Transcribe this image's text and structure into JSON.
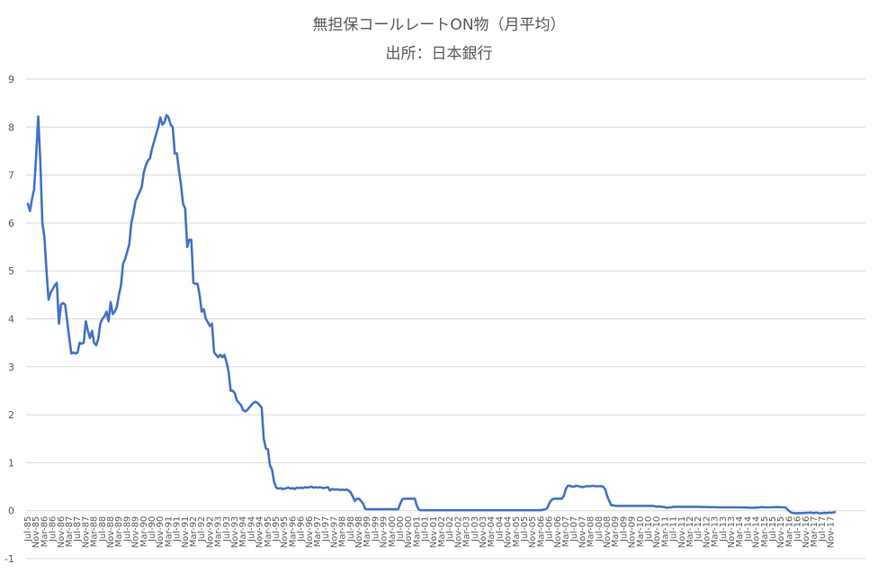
{
  "chart_data": {
    "type": "line",
    "title": "無担保コールレートON物（月平均）",
    "subtitle": "出所：日本銀行",
    "series_color": "#4472c4",
    "grid": true,
    "ylim": [
      -1,
      9
    ],
    "yticks": [
      -1,
      0,
      1,
      2,
      3,
      4,
      5,
      6,
      7,
      8,
      9
    ],
    "x_start": "1985-07",
    "x_tick_step_months": 4,
    "x_tick_labels": [
      "Jul-85",
      "Nov-85",
      "Mar-86",
      "Jul-86",
      "Nov-86",
      "Mar-87",
      "Jul-87",
      "Nov-87",
      "Mar-88",
      "Jul-88",
      "Nov-88",
      "Mar-89",
      "Jul-89",
      "Nov-89",
      "Mar-90",
      "Jul-90",
      "Nov-90",
      "Mar-91",
      "Jul-91",
      "Nov-91",
      "Mar-92",
      "Jul-92",
      "Nov-92",
      "Mar-93",
      "Jul-93",
      "Nov-93",
      "Mar-94",
      "Jul-94",
      "Nov-94",
      "Mar-95",
      "Jul-95",
      "Nov-95",
      "Mar-96",
      "Jul-96",
      "Nov-96",
      "Mar-97",
      "Jul-97",
      "Nov-97",
      "Mar-98",
      "Jul-98",
      "Nov-98",
      "Mar-99",
      "Jul-99",
      "Nov-99",
      "Mar-00",
      "Jul-00",
      "Nov-00",
      "Mar-01",
      "Jul-01",
      "Nov-01",
      "Mar-02",
      "Jul-02",
      "Nov-02",
      "Mar-03",
      "Jul-03",
      "Nov-03",
      "Mar-04",
      "Jul-04",
      "Nov-04",
      "Mar-05",
      "Jul-05",
      "Nov-05",
      "Mar-06",
      "Jul-06",
      "Nov-06",
      "Mar-07",
      "Jul-07",
      "Nov-07",
      "Mar-08",
      "Jul-08",
      "Nov-08",
      "Mar-09",
      "Jul-09",
      "Nov-09",
      "Mar-10",
      "Jul-10",
      "Nov-10",
      "Mar-11",
      "Jul-11",
      "Nov-11",
      "Mar-12",
      "Jul-12",
      "Nov-12",
      "Mar-13",
      "Jul-13",
      "Nov-13",
      "Mar-14",
      "Jul-14",
      "Nov-14",
      "Mar-15",
      "Jul-15",
      "Nov-15",
      "Mar-16",
      "Jul-16",
      "Nov-16",
      "Mar-17",
      "Jul-17",
      "Nov-17"
    ],
    "points": [
      [
        "1985-07",
        6.4
      ],
      [
        "1985-08",
        6.25
      ],
      [
        "1985-09",
        6.5
      ],
      [
        "1985-10",
        6.7
      ],
      [
        "1985-11",
        7.4
      ],
      [
        "1985-12",
        8.22
      ],
      [
        "1986-01",
        7.3
      ],
      [
        "1986-02",
        6.0
      ],
      [
        "1986-03",
        5.7
      ],
      [
        "1986-04",
        5.0
      ],
      [
        "1986-05",
        4.4
      ],
      [
        "1986-06",
        4.55
      ],
      [
        "1986-07",
        4.62
      ],
      [
        "1986-08",
        4.7
      ],
      [
        "1986-09",
        4.75
      ],
      [
        "1986-10",
        3.9
      ],
      [
        "1986-11",
        4.3
      ],
      [
        "1986-12",
        4.33
      ],
      [
        "1987-01",
        4.3
      ],
      [
        "1987-02",
        3.95
      ],
      [
        "1987-03",
        3.6
      ],
      [
        "1987-04",
        3.28
      ],
      [
        "1987-05",
        3.3
      ],
      [
        "1987-06",
        3.28
      ],
      [
        "1987-07",
        3.3
      ],
      [
        "1987-08",
        3.5
      ],
      [
        "1987-09",
        3.48
      ],
      [
        "1987-10",
        3.5
      ],
      [
        "1987-11",
        3.95
      ],
      [
        "1987-12",
        3.75
      ],
      [
        "1988-01",
        3.6
      ],
      [
        "1988-02",
        3.75
      ],
      [
        "1988-03",
        3.5
      ],
      [
        "1988-04",
        3.45
      ],
      [
        "1988-05",
        3.58
      ],
      [
        "1988-06",
        3.9
      ],
      [
        "1988-07",
        4.0
      ],
      [
        "1988-08",
        4.05
      ],
      [
        "1988-09",
        4.15
      ],
      [
        "1988-10",
        3.95
      ],
      [
        "1988-11",
        4.35
      ],
      [
        "1988-12",
        4.1
      ],
      [
        "1989-01",
        4.15
      ],
      [
        "1989-02",
        4.25
      ],
      [
        "1989-03",
        4.5
      ],
      [
        "1989-04",
        4.7
      ],
      [
        "1989-05",
        5.15
      ],
      [
        "1989-06",
        5.25
      ],
      [
        "1989-07",
        5.4
      ],
      [
        "1989-08",
        5.55
      ],
      [
        "1989-09",
        6.0
      ],
      [
        "1989-10",
        6.2
      ],
      [
        "1989-11",
        6.45
      ],
      [
        "1989-12",
        6.55
      ],
      [
        "1990-01",
        6.65
      ],
      [
        "1990-02",
        6.75
      ],
      [
        "1990-03",
        7.05
      ],
      [
        "1990-04",
        7.2
      ],
      [
        "1990-05",
        7.3
      ],
      [
        "1990-06",
        7.35
      ],
      [
        "1990-07",
        7.55
      ],
      [
        "1990-08",
        7.7
      ],
      [
        "1990-09",
        7.85
      ],
      [
        "1990-10",
        8.0
      ],
      [
        "1990-11",
        8.2
      ],
      [
        "1990-12",
        8.05
      ],
      [
        "1991-01",
        8.1
      ],
      [
        "1991-02",
        8.25
      ],
      [
        "1991-03",
        8.2
      ],
      [
        "1991-04",
        8.05
      ],
      [
        "1991-05",
        8.0
      ],
      [
        "1991-06",
        7.45
      ],
      [
        "1991-07",
        7.45
      ],
      [
        "1991-08",
        7.1
      ],
      [
        "1991-09",
        6.8
      ],
      [
        "1991-10",
        6.4
      ],
      [
        "1991-11",
        6.3
      ],
      [
        "1991-12",
        5.5
      ],
      [
        "1992-01",
        5.65
      ],
      [
        "1992-02",
        5.65
      ],
      [
        "1992-03",
        4.75
      ],
      [
        "1992-04",
        4.73
      ],
      [
        "1992-05",
        4.73
      ],
      [
        "1992-06",
        4.5
      ],
      [
        "1992-07",
        4.15
      ],
      [
        "1992-08",
        4.2
      ],
      [
        "1992-09",
        4.0
      ],
      [
        "1992-10",
        3.93
      ],
      [
        "1992-11",
        3.85
      ],
      [
        "1992-12",
        3.9
      ],
      [
        "1993-01",
        3.3
      ],
      [
        "1993-02",
        3.25
      ],
      [
        "1993-03",
        3.2
      ],
      [
        "1993-04",
        3.25
      ],
      [
        "1993-05",
        3.2
      ],
      [
        "1993-06",
        3.25
      ],
      [
        "1993-07",
        3.1
      ],
      [
        "1993-08",
        2.9
      ],
      [
        "1993-09",
        2.5
      ],
      [
        "1993-10",
        2.5
      ],
      [
        "1993-11",
        2.45
      ],
      [
        "1993-12",
        2.3
      ],
      [
        "1994-01",
        2.25
      ],
      [
        "1994-02",
        2.2
      ],
      [
        "1994-03",
        2.1
      ],
      [
        "1994-04",
        2.07
      ],
      [
        "1994-05",
        2.1
      ],
      [
        "1994-06",
        2.15
      ],
      [
        "1994-07",
        2.2
      ],
      [
        "1994-08",
        2.25
      ],
      [
        "1994-09",
        2.27
      ],
      [
        "1994-10",
        2.25
      ],
      [
        "1994-11",
        2.2
      ],
      [
        "1994-12",
        2.15
      ],
      [
        "1995-01",
        1.5
      ],
      [
        "1995-02",
        1.3
      ],
      [
        "1995-03",
        1.28
      ],
      [
        "1995-04",
        0.95
      ],
      [
        "1995-05",
        0.85
      ],
      [
        "1995-06",
        0.6
      ],
      [
        "1995-07",
        0.48
      ],
      [
        "1995-08",
        0.46
      ],
      [
        "1995-09",
        0.47
      ],
      [
        "1995-10",
        0.45
      ],
      [
        "1995-11",
        0.46
      ],
      [
        "1995-12",
        0.47
      ],
      [
        "1996-01",
        0.48
      ],
      [
        "1996-02",
        0.46
      ],
      [
        "1996-03",
        0.47
      ],
      [
        "1996-04",
        0.45
      ],
      [
        "1996-05",
        0.48
      ],
      [
        "1996-06",
        0.47
      ],
      [
        "1996-07",
        0.48
      ],
      [
        "1996-08",
        0.47
      ],
      [
        "1996-09",
        0.49
      ],
      [
        "1996-10",
        0.48
      ],
      [
        "1996-11",
        0.49
      ],
      [
        "1996-12",
        0.5
      ],
      [
        "1997-01",
        0.48
      ],
      [
        "1997-02",
        0.49
      ],
      [
        "1997-03",
        0.48
      ],
      [
        "1997-04",
        0.49
      ],
      [
        "1997-05",
        0.48
      ],
      [
        "1997-06",
        0.47
      ],
      [
        "1997-07",
        0.48
      ],
      [
        "1997-08",
        0.49
      ],
      [
        "1997-09",
        0.42
      ],
      [
        "1997-10",
        0.45
      ],
      [
        "1997-11",
        0.44
      ],
      [
        "1997-12",
        0.44
      ],
      [
        "1998-01",
        0.44
      ],
      [
        "1998-02",
        0.43
      ],
      [
        "1998-03",
        0.44
      ],
      [
        "1998-04",
        0.43
      ],
      [
        "1998-05",
        0.44
      ],
      [
        "1998-06",
        0.42
      ],
      [
        "1998-07",
        0.38
      ],
      [
        "1998-08",
        0.3
      ],
      [
        "1998-09",
        0.2
      ],
      [
        "1998-10",
        0.25
      ],
      [
        "1998-11",
        0.25
      ],
      [
        "1998-12",
        0.2
      ],
      [
        "1999-01",
        0.15
      ],
      [
        "1999-02",
        0.04
      ],
      [
        "1999-03",
        0.03
      ],
      [
        "1999-04",
        0.03
      ],
      [
        "1999-05",
        0.03
      ],
      [
        "1999-06",
        0.03
      ],
      [
        "1999-07",
        0.03
      ],
      [
        "1999-08",
        0.03
      ],
      [
        "1999-09",
        0.03
      ],
      [
        "1999-10",
        0.03
      ],
      [
        "1999-11",
        0.03
      ],
      [
        "1999-12",
        0.03
      ],
      [
        "2000-01",
        0.03
      ],
      [
        "2000-02",
        0.03
      ],
      [
        "2000-03",
        0.03
      ],
      [
        "2000-04",
        0.03
      ],
      [
        "2000-05",
        0.03
      ],
      [
        "2000-06",
        0.03
      ],
      [
        "2000-07",
        0.15
      ],
      [
        "2000-08",
        0.24
      ],
      [
        "2000-09",
        0.25
      ],
      [
        "2000-10",
        0.25
      ],
      [
        "2000-11",
        0.25
      ],
      [
        "2000-12",
        0.25
      ],
      [
        "2001-01",
        0.25
      ],
      [
        "2001-02",
        0.25
      ],
      [
        "2001-03",
        0.1
      ],
      [
        "2001-04",
        0.02
      ],
      [
        "2001-05",
        0.01
      ],
      [
        "2001-06",
        0.01
      ],
      [
        "2001-07",
        0.01
      ],
      [
        "2001-08",
        0.01
      ],
      [
        "2001-09",
        0.01
      ],
      [
        "2001-10",
        0.01
      ],
      [
        "2001-11",
        0.01
      ],
      [
        "2001-12",
        0.01
      ],
      [
        "2002-06",
        0.01
      ],
      [
        "2003-06",
        0.01
      ],
      [
        "2004-06",
        0.01
      ],
      [
        "2005-06",
        0.01
      ],
      [
        "2006-01",
        0.01
      ],
      [
        "2006-02",
        0.01
      ],
      [
        "2006-03",
        0.01
      ],
      [
        "2006-04",
        0.02
      ],
      [
        "2006-05",
        0.03
      ],
      [
        "2006-06",
        0.05
      ],
      [
        "2006-07",
        0.15
      ],
      [
        "2006-08",
        0.22
      ],
      [
        "2006-09",
        0.25
      ],
      [
        "2006-10",
        0.25
      ],
      [
        "2006-11",
        0.25
      ],
      [
        "2006-12",
        0.25
      ],
      [
        "2007-01",
        0.25
      ],
      [
        "2007-02",
        0.3
      ],
      [
        "2007-03",
        0.45
      ],
      [
        "2007-04",
        0.52
      ],
      [
        "2007-05",
        0.52
      ],
      [
        "2007-06",
        0.5
      ],
      [
        "2007-07",
        0.5
      ],
      [
        "2007-08",
        0.52
      ],
      [
        "2007-09",
        0.51
      ],
      [
        "2007-10",
        0.5
      ],
      [
        "2007-11",
        0.49
      ],
      [
        "2007-12",
        0.5
      ],
      [
        "2008-01",
        0.51
      ],
      [
        "2008-02",
        0.51
      ],
      [
        "2008-03",
        0.51
      ],
      [
        "2008-04",
        0.52
      ],
      [
        "2008-05",
        0.51
      ],
      [
        "2008-06",
        0.51
      ],
      [
        "2008-07",
        0.51
      ],
      [
        "2008-08",
        0.51
      ],
      [
        "2008-09",
        0.5
      ],
      [
        "2008-10",
        0.45
      ],
      [
        "2008-11",
        0.3
      ],
      [
        "2008-12",
        0.2
      ],
      [
        "2009-01",
        0.11
      ],
      [
        "2009-02",
        0.11
      ],
      [
        "2009-03",
        0.1
      ],
      [
        "2009-04",
        0.1
      ],
      [
        "2009-06",
        0.1
      ],
      [
        "2010-03",
        0.1
      ],
      [
        "2010-06",
        0.1
      ],
      [
        "2010-09",
        0.1
      ],
      [
        "2010-10",
        0.09
      ],
      [
        "2010-11",
        0.08
      ],
      [
        "2010-12",
        0.09
      ],
      [
        "2011-01",
        0.08
      ],
      [
        "2011-02",
        0.08
      ],
      [
        "2011-03",
        0.07
      ],
      [
        "2011-04",
        0.06
      ],
      [
        "2011-05",
        0.07
      ],
      [
        "2011-06",
        0.07
      ],
      [
        "2011-07",
        0.08
      ],
      [
        "2012-06",
        0.08
      ],
      [
        "2013-06",
        0.07
      ],
      [
        "2014-01",
        0.07
      ],
      [
        "2014-03",
        0.07
      ],
      [
        "2014-06",
        0.065
      ],
      [
        "2014-09",
        0.06
      ],
      [
        "2014-12",
        0.065
      ],
      [
        "2015-01",
        0.07
      ],
      [
        "2015-02",
        0.075
      ],
      [
        "2015-03",
        0.07
      ],
      [
        "2015-06",
        0.07
      ],
      [
        "2015-09",
        0.075
      ],
      [
        "2015-12",
        0.07
      ],
      [
        "2016-01",
        0.07
      ],
      [
        "2016-02",
        0.03
      ],
      [
        "2016-03",
        -0.01
      ],
      [
        "2016-04",
        -0.04
      ],
      [
        "2016-05",
        -0.05
      ],
      [
        "2016-06",
        -0.055
      ],
      [
        "2016-07",
        -0.05
      ],
      [
        "2016-08",
        -0.05
      ],
      [
        "2016-09",
        -0.05
      ],
      [
        "2016-10",
        -0.05
      ],
      [
        "2016-11",
        -0.045
      ],
      [
        "2016-12",
        -0.045
      ],
      [
        "2017-01",
        -0.04
      ],
      [
        "2017-02",
        -0.045
      ],
      [
        "2017-03",
        -0.05
      ],
      [
        "2017-04",
        -0.04
      ],
      [
        "2017-05",
        -0.05
      ],
      [
        "2017-06",
        -0.055
      ],
      [
        "2017-07",
        -0.05
      ],
      [
        "2017-08",
        -0.045
      ],
      [
        "2017-09",
        -0.05
      ],
      [
        "2017-10",
        -0.04
      ],
      [
        "2017-11",
        -0.045
      ],
      [
        "2017-12",
        -0.04
      ],
      [
        "2018-01",
        -0.03
      ]
    ]
  }
}
